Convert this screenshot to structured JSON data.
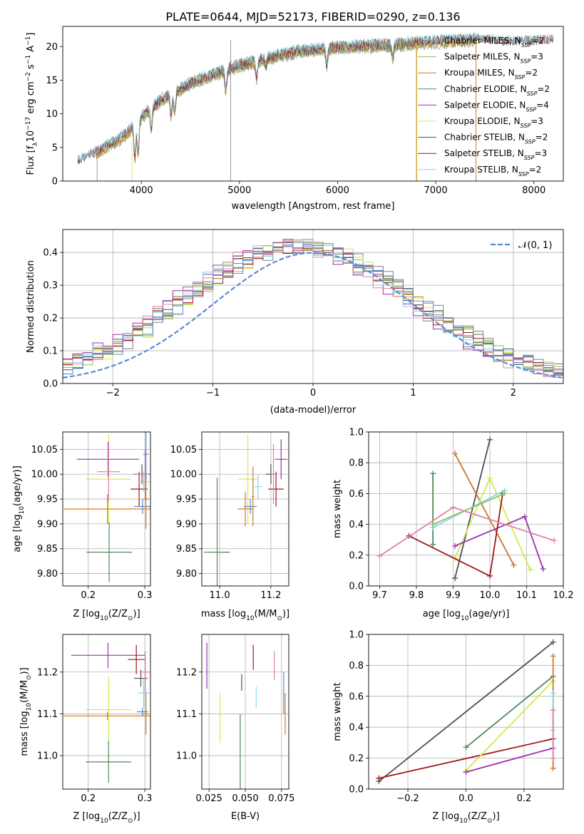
{
  "figure_title": "PLATE=0644, MJD=52173, FIBERID=0290, z=0.136",
  "colors": {
    "chabrier_miles": "#808080",
    "salpeter_miles": "#8fbf5f",
    "kroupa_miles": "#c87a2a",
    "chabrier_elodie": "#4f8a5a",
    "salpeter_elodie": "#9b30b0",
    "kroupa_elodie": "#d4e84a",
    "chabrier_stelib": "#505050",
    "salpeter_stelib": "#a01818",
    "kroupa_stelib": "#7fd8e8",
    "pink": "#e080b0",
    "blue": "#5a8ad8",
    "orange": "#e07a10"
  },
  "chart_data": [
    {
      "id": "spectrum",
      "type": "line",
      "xlabel": "wavelength [Angstrom, rest frame]",
      "ylabel_parts": [
        "Flux [f",
        "λ",
        "10",
        "−17",
        " erg cm",
        "−2",
        " s",
        "−1",
        " A",
        "−1",
        "]"
      ],
      "xlim": [
        3200,
        8300
      ],
      "ylim": [
        0,
        23
      ],
      "xticks": [
        4000,
        5000,
        6000,
        7000,
        8000
      ],
      "yticks": [
        0,
        5,
        10,
        15,
        20
      ],
      "continuum": {
        "x": [
          3350,
          3500,
          3700,
          3850,
          4000,
          4200,
          4500,
          4800,
          5000,
          5300,
          5600,
          5900,
          6200,
          6500,
          6800,
          7100,
          7400,
          7700,
          8000,
          8200
        ],
        "y": [
          2.8,
          3.8,
          5.5,
          7.0,
          9.5,
          12.0,
          14.5,
          16.2,
          17.2,
          18.3,
          19.3,
          19.7,
          20.0,
          20.2,
          20.5,
          20.8,
          21.0,
          20.5,
          20.6,
          20.8
        ]
      },
      "legend": [
        {
          "label": "Chabrier MILES, N",
          "sub": "SSP",
          "suffix": "=2",
          "color": "chabrier_miles"
        },
        {
          "label": "Salpeter MILES, N",
          "sub": "SSP",
          "suffix": "=3",
          "color": "salpeter_miles"
        },
        {
          "label": "Kroupa MILES, N",
          "sub": "SSP",
          "suffix": "=2",
          "color": "kroupa_miles"
        },
        {
          "label": "Chabrier ELODIE, N",
          "sub": "SSP",
          "suffix": "=2",
          "color": "chabrier_elodie"
        },
        {
          "label": "Salpeter ELODIE, N",
          "sub": "SSP",
          "suffix": "=4",
          "color": "salpeter_elodie"
        },
        {
          "label": "Kroupa ELODIE, N",
          "sub": "SSP",
          "suffix": "=3",
          "color": "kroupa_elodie"
        },
        {
          "label": "Chabrier STELIB, N",
          "sub": "SSP",
          "suffix": "=2",
          "color": "chabrier_stelib"
        },
        {
          "label": "Salpeter STELIB, N",
          "sub": "SSP",
          "suffix": "=3",
          "color": "salpeter_stelib"
        },
        {
          "label": "Kroupa STELIB, N",
          "sub": "SSP",
          "suffix": "=2",
          "color": "kroupa_stelib"
        }
      ]
    },
    {
      "id": "residuals",
      "type": "histogram",
      "xlabel": "(data-model)/error",
      "ylabel": "Normed distribution",
      "xlim": [
        -2.5,
        2.5
      ],
      "ylim": [
        0,
        0.47
      ],
      "xticks": [
        -2,
        -1,
        0,
        1,
        2
      ],
      "yticks": [
        0.0,
        0.1,
        0.2,
        0.3,
        0.4
      ],
      "grid": true,
      "bin_width": 0.1,
      "gaussian_label": "𝒩(0, 1)",
      "gaussian_color": "blue",
      "legend_position": "top-right"
    },
    {
      "id": "age_vs_Z",
      "type": "errorbar",
      "xlabel": "Z [log",
      "xlabel_sub": "10",
      "xlabel_end": "(Z/Z",
      "xlabel_sun": "⊙",
      "xlabel_close": ")]",
      "ylabel": "age  [log",
      "ylabel_sub": "10",
      "ylabel_end": "(age/yr)]",
      "xlim": [
        0.155,
        0.31
      ],
      "ylim": [
        9.775,
        10.085
      ],
      "xticks": [
        0.2,
        0.3
      ],
      "yticks": [
        9.8,
        9.85,
        9.9,
        9.95,
        10.0,
        10.05
      ],
      "grid": true,
      "points": [
        {
          "x": 0.235,
          "y": 10.03,
          "xerr": 0.055,
          "yerr": 0.035,
          "color": "salpeter_elodie"
        },
        {
          "x": 0.236,
          "y": 9.99,
          "xerr": 0.04,
          "yerr": 0.09,
          "color": "kroupa_elodie"
        },
        {
          "x": 0.237,
          "y": 9.843,
          "xerr": 0.04,
          "yerr": 0.06,
          "color": "chabrier_elodie"
        },
        {
          "x": 0.234,
          "y": 9.93,
          "xerr": 0.077,
          "yerr": 0.03,
          "color": "orange"
        },
        {
          "x": 0.236,
          "y": 10.005,
          "xerr": 0.02,
          "yerr": 0.06,
          "color": "pink"
        },
        {
          "x": 0.29,
          "y": 9.97,
          "xerr": 0.015,
          "yerr": 0.035,
          "color": "salpeter_stelib"
        },
        {
          "x": 0.295,
          "y": 10.0,
          "xerr": 0.015,
          "yerr": 0.02,
          "color": "chabrier_stelib"
        },
        {
          "x": 0.298,
          "y": 9.985,
          "xerr": 0.01,
          "yerr": 0.02,
          "color": "kroupa_stelib"
        },
        {
          "x": 0.296,
          "y": 9.935,
          "xerr": 0.015,
          "yerr": 0.015,
          "color": "blue"
        },
        {
          "x": 0.301,
          "y": 10.0,
          "xerr": 0.02,
          "yerr": 0.05,
          "color": "pink"
        },
        {
          "x": 0.302,
          "y": 9.95,
          "xerr": 0.005,
          "yerr": 0.06,
          "color": "kroupa_miles"
        },
        {
          "x": 0.302,
          "y": 10.04,
          "xerr": 0.005,
          "yerr": 0.05,
          "color": "blue"
        }
      ]
    },
    {
      "id": "age_vs_mass",
      "type": "errorbar",
      "xlabel": "mass [log",
      "xlabel_sub": "10",
      "xlabel_end": "(M/M",
      "xlabel_sun": "⊙",
      "xlabel_close": ")]",
      "xlim": [
        10.93,
        11.27
      ],
      "ylim": [
        9.775,
        10.085
      ],
      "xticks": [
        11.0,
        11.2
      ],
      "yticks": [
        9.8,
        9.85,
        9.9,
        9.95,
        10.0,
        10.05
      ],
      "grid": true,
      "points": [
        {
          "x": 10.99,
          "y": 9.843,
          "xerr": 0.05,
          "yerr": 0.15,
          "color": "chabrier_elodie"
        },
        {
          "x": 11.11,
          "y": 9.99,
          "xerr": 0.04,
          "yerr": 0.09,
          "color": "kroupa_elodie"
        },
        {
          "x": 11.1,
          "y": 9.93,
          "xerr": 0.03,
          "yerr": 0.035,
          "color": "orange"
        },
        {
          "x": 11.12,
          "y": 9.935,
          "xerr": 0.025,
          "yerr": 0.015,
          "color": "blue"
        },
        {
          "x": 11.15,
          "y": 9.975,
          "xerr": 0.015,
          "yerr": 0.025,
          "color": "kroupa_stelib"
        },
        {
          "x": 11.2,
          "y": 10.0,
          "xerr": 0.02,
          "yerr": 0.02,
          "color": "chabrier_stelib"
        },
        {
          "x": 11.22,
          "y": 9.97,
          "xerr": 0.03,
          "yerr": 0.035,
          "color": "salpeter_stelib"
        },
        {
          "x": 11.24,
          "y": 10.03,
          "xerr": 0.025,
          "yerr": 0.04,
          "color": "salpeter_elodie"
        },
        {
          "x": 11.21,
          "y": 10.0,
          "xerr": 0.01,
          "yerr": 0.06,
          "color": "pink"
        },
        {
          "x": 11.13,
          "y": 9.955,
          "xerr": 0.005,
          "yerr": 0.06,
          "color": "kroupa_miles"
        }
      ]
    },
    {
      "id": "massweight_vs_age",
      "type": "line",
      "xlabel": "age  [log",
      "xlabel_sub": "10",
      "xlabel_end": "(age/yr)]",
      "ylabel": "mass weight",
      "xlim": [
        9.67,
        10.2
      ],
      "ylim": [
        0,
        1.0
      ],
      "xticks": [
        9.7,
        9.8,
        9.9,
        10.0,
        10.1,
        10.2
      ],
      "xtick_labels": [
        "9.7",
        "9.8",
        "9.9",
        "10.0",
        "10.1",
        "10.2"
      ],
      "yticks": [
        0.0,
        0.2,
        0.4,
        0.6,
        0.8,
        1.0
      ],
      "grid": true,
      "series": [
        {
          "color": "chabrier_elodie",
          "x": [
            9.845,
            9.845
          ],
          "y": [
            0.27,
            0.73
          ]
        },
        {
          "color": "chabrier_stelib",
          "x": [
            9.905,
            10.0
          ],
          "y": [
            0.05,
            0.95
          ]
        },
        {
          "color": "kroupa_miles",
          "x": [
            9.905,
            10.065
          ],
          "y": [
            0.86,
            0.135
          ]
        },
        {
          "color": "kroupa_elodie",
          "x": [
            9.905,
            10.0,
            10.11
          ],
          "y": [
            0.18,
            0.7,
            0.105
          ]
        },
        {
          "color": "salpeter_elodie",
          "x": [
            9.905,
            10.095,
            10.145
          ],
          "y": [
            0.26,
            0.45,
            0.11
          ]
        },
        {
          "color": "salpeter_stelib",
          "x": [
            9.78,
            10.0,
            10.035
          ],
          "y": [
            0.325,
            0.065,
            0.6
          ]
        },
        {
          "color": "pink",
          "x": [
            9.7,
            9.9,
            10.175
          ],
          "y": [
            0.195,
            0.51,
            0.295
          ]
        },
        {
          "color": "kroupa_stelib",
          "x": [
            9.845,
            10.04
          ],
          "y": [
            0.38,
            0.62
          ]
        },
        {
          "color": "salpeter_miles",
          "x": [
            9.845,
            10.04
          ],
          "y": [
            0.4,
            0.6
          ]
        }
      ]
    },
    {
      "id": "mass_vs_Z",
      "type": "errorbar",
      "xlabel": "Z [log",
      "xlabel_sub": "10",
      "xlabel_end": "(Z/Z",
      "xlabel_sun": "⊙",
      "xlabel_close": ")]",
      "ylabel": "mass [log",
      "ylabel_sub": "10",
      "ylabel_end": "(M/M",
      "ylabel_sun": "⊙",
      "ylabel_close": ")]",
      "xlim": [
        0.155,
        0.31
      ],
      "ylim": [
        10.92,
        11.29
      ],
      "xticks": [
        0.2,
        0.3
      ],
      "yticks": [
        11.0,
        11.1,
        11.2
      ],
      "grid": true,
      "points": [
        {
          "x": 0.235,
          "y": 11.24,
          "xerr": 0.065,
          "yerr": 0.03,
          "color": "salpeter_elodie"
        },
        {
          "x": 0.236,
          "y": 11.11,
          "xerr": 0.04,
          "yerr": 0.08,
          "color": "kroupa_elodie"
        },
        {
          "x": 0.236,
          "y": 10.985,
          "xerr": 0.04,
          "yerr": 0.05,
          "color": "chabrier_elodie"
        },
        {
          "x": 0.234,
          "y": 11.095,
          "xerr": 0.077,
          "yerr": 0.01,
          "color": "orange"
        },
        {
          "x": 0.285,
          "y": 11.23,
          "xerr": 0.015,
          "yerr": 0.035,
          "color": "salpeter_stelib"
        },
        {
          "x": 0.293,
          "y": 11.185,
          "xerr": 0.012,
          "yerr": 0.02,
          "color": "chabrier_stelib"
        },
        {
          "x": 0.298,
          "y": 11.15,
          "xerr": 0.01,
          "yerr": 0.035,
          "color": "kroupa_stelib"
        },
        {
          "x": 0.296,
          "y": 11.105,
          "xerr": 0.01,
          "yerr": 0.01,
          "color": "blue"
        },
        {
          "x": 0.302,
          "y": 11.1,
          "xerr": 0.005,
          "yerr": 0.05,
          "color": "kroupa_miles"
        },
        {
          "x": 0.301,
          "y": 11.2,
          "xerr": 0.01,
          "yerr": 0.05,
          "color": "pink"
        }
      ]
    },
    {
      "id": "mass_vs_ebv",
      "type": "errorbar",
      "xlabel": "E(B-V)",
      "xlim": [
        0.02,
        0.08
      ],
      "ylim": [
        10.92,
        11.29
      ],
      "xticks": [
        0.025,
        0.05,
        0.075
      ],
      "xtick_labels": [
        "0.025",
        "0.050",
        "0.075"
      ],
      "yticks": [
        11.0,
        11.1,
        11.2
      ],
      "grid": true,
      "points": [
        {
          "x": 0.0235,
          "y": 11.215,
          "xerr": 0.0,
          "yerr": 0.055,
          "color": "salpeter_elodie"
        },
        {
          "x": 0.0325,
          "y": 11.09,
          "xerr": 0.0,
          "yerr": 0.06,
          "color": "kroupa_elodie"
        },
        {
          "x": 0.0465,
          "y": 10.99,
          "xerr": 0.0,
          "yerr": 0.11,
          "color": "chabrier_elodie"
        },
        {
          "x": 0.0475,
          "y": 11.175,
          "xerr": 0.0,
          "yerr": 0.02,
          "color": "chabrier_stelib"
        },
        {
          "x": 0.0555,
          "y": 11.235,
          "xerr": 0.0,
          "yerr": 0.03,
          "color": "salpeter_stelib"
        },
        {
          "x": 0.0575,
          "y": 11.14,
          "xerr": 0.0,
          "yerr": 0.025,
          "color": "kroupa_stelib"
        },
        {
          "x": 0.07,
          "y": 11.215,
          "xerr": 0.0,
          "yerr": 0.035,
          "color": "pink"
        },
        {
          "x": 0.0765,
          "y": 11.15,
          "xerr": 0.0,
          "yerr": 0.05,
          "color": "blue"
        },
        {
          "x": 0.0775,
          "y": 11.1,
          "xerr": 0.0,
          "yerr": 0.05,
          "color": "kroupa_miles"
        }
      ]
    },
    {
      "id": "massweight_vs_Z",
      "type": "line",
      "xlabel": "Z [log",
      "xlabel_sub": "10",
      "xlabel_end": "(Z/Z",
      "xlabel_sun": "⊙",
      "xlabel_close": ")]",
      "ylabel": "mass weight",
      "xlim": [
        -0.335,
        0.335
      ],
      "ylim": [
        0,
        1.0
      ],
      "xticks": [
        -0.2,
        0.0,
        0.2
      ],
      "xtick_labels": [
        "−0.2",
        "0.0",
        "0.2"
      ],
      "yticks": [
        0.0,
        0.2,
        0.4,
        0.6,
        0.8,
        1.0
      ],
      "grid": true,
      "series": [
        {
          "color": "chabrier_stelib",
          "x": [
            -0.3,
            0.3
          ],
          "y": [
            0.05,
            0.95
          ]
        },
        {
          "color": "salpeter_stelib",
          "x": [
            -0.3,
            0.3
          ],
          "y": [
            0.07,
            0.325
          ]
        },
        {
          "color": "chabrier_elodie",
          "x": [
            0.0,
            0.3
          ],
          "y": [
            0.27,
            0.73
          ]
        },
        {
          "color": "kroupa_elodie",
          "x": [
            0.0,
            0.3
          ],
          "y": [
            0.12,
            0.7
          ]
        },
        {
          "color": "salpeter_elodie",
          "x": [
            0.0,
            0.3
          ],
          "y": [
            0.11,
            0.265
          ]
        },
        {
          "color": "kroupa_miles",
          "x": [
            0.3,
            0.3
          ],
          "y": [
            0.135,
            0.86
          ]
        },
        {
          "color": "kroupa_stelib",
          "x": [
            0.3,
            0.3
          ],
          "y": [
            0.38,
            0.62
          ]
        },
        {
          "color": "pink",
          "x": [
            0.3,
            0.3
          ],
          "y": [
            0.2,
            0.51
          ]
        }
      ]
    }
  ]
}
